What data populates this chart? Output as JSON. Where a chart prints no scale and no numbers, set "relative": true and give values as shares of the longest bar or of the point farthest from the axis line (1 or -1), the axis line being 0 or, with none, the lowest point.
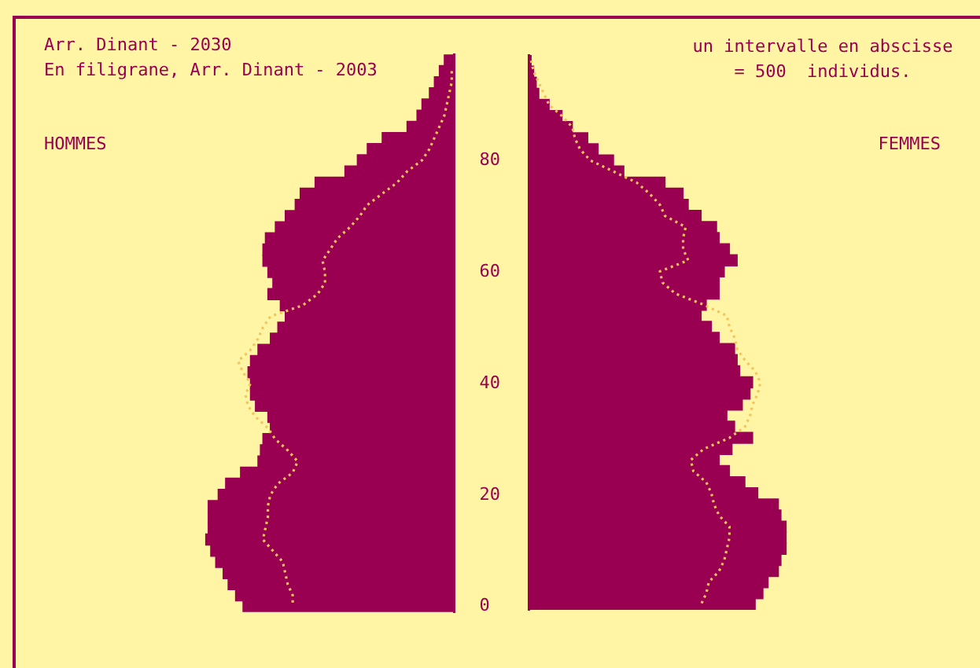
{
  "chart_data": [
    {
      "type": "bar",
      "orientation": "horizontal",
      "relative": true,
      "title": "Arr. Dinant - 2030",
      "annotations": [
        "En filigrane, Arr. Dinant - 2003"
      ],
      "categories": [
        null,
        null,
        null,
        null,
        null,
        null,
        null,
        null,
        null,
        "80",
        null,
        null,
        null,
        null,
        null,
        null,
        null,
        null,
        null,
        "60",
        null,
        null,
        null,
        null,
        null,
        null,
        null,
        null,
        null,
        "40",
        null,
        null,
        null,
        null,
        null,
        null,
        null,
        null,
        null,
        "20",
        null,
        null,
        null,
        null,
        null,
        null,
        null,
        null,
        null,
        "0"
      ],
      "series": [
        {
          "name": "HOMMES",
          "color": "#990052",
          "values": [
            0.04,
            0.06,
            0.08,
            0.1,
            0.13,
            0.15,
            0.19,
            0.29,
            0.35,
            0.39,
            0.44,
            0.56,
            0.62,
            0.64,
            0.68,
            0.72,
            0.76,
            0.77,
            0.77,
            0.75,
            0.73,
            0.75,
            0.7,
            0.68,
            0.71,
            0.74,
            0.79,
            0.82,
            0.83,
            0.82,
            0.82,
            0.8,
            0.75,
            0.74,
            0.77,
            0.78,
            0.79,
            0.86,
            0.92,
            0.95,
            0.99,
            0.99,
            0.99,
            1.0,
            0.98,
            0.96,
            0.93,
            0.91,
            0.88,
            0.85
          ]
        },
        {
          "type": "line",
          "color": "#f2c55c",
          "values": [
            null,
            0.01,
            0.01,
            0.02,
            0.03,
            0.04,
            0.06,
            0.08,
            0.1,
            0.13,
            0.19,
            0.23,
            0.29,
            0.35,
            0.38,
            0.42,
            0.47,
            0.5,
            0.53,
            0.52,
            0.52,
            0.55,
            0.61,
            0.74,
            0.77,
            0.79,
            0.82,
            0.87,
            0.85,
            0.82,
            0.84,
            0.83,
            0.8,
            0.75,
            0.72,
            0.67,
            0.63,
            0.65,
            0.71,
            0.74,
            0.75,
            0.75,
            0.76,
            0.77,
            0.73,
            0.69,
            0.68,
            0.67,
            0.65,
            0.65
          ]
        }
      ],
      "line_style": "dotted",
      "marker": "none",
      "tick_labels": "y"
    },
    {
      "type": "bar",
      "orientation": "horizontal",
      "relative": true,
      "annotations": [
        "un intervalle en abscisse = 500  individus."
      ],
      "categories": [
        null,
        null,
        null,
        null,
        null,
        null,
        null,
        null,
        null,
        "80",
        null,
        null,
        null,
        null,
        null,
        null,
        null,
        null,
        null,
        "60",
        null,
        null,
        null,
        null,
        null,
        null,
        null,
        null,
        null,
        "40",
        null,
        null,
        null,
        null,
        null,
        null,
        null,
        null,
        null,
        "20",
        null,
        null,
        null,
        null,
        null,
        null,
        null,
        null,
        null,
        "0"
      ],
      "series": [
        {
          "name": "FEMMES",
          "color": "#990052",
          "values": [
            0.01,
            0.02,
            0.03,
            0.04,
            0.08,
            0.13,
            0.17,
            0.23,
            0.27,
            0.33,
            0.37,
            0.53,
            0.6,
            0.62,
            0.67,
            0.73,
            0.74,
            0.78,
            0.81,
            0.76,
            0.74,
            0.74,
            0.69,
            0.67,
            0.71,
            0.74,
            0.8,
            0.81,
            0.82,
            0.87,
            0.86,
            0.83,
            0.77,
            0.8,
            0.87,
            0.79,
            0.74,
            0.78,
            0.84,
            0.89,
            0.97,
            0.98,
            1.0,
            1.0,
            1.0,
            0.98,
            0.97,
            0.93,
            0.91,
            0.88
          ]
        },
        {
          "type": "line",
          "color": "#f2c55c",
          "values": [
            0.01,
            0.02,
            0.04,
            0.06,
            0.08,
            0.13,
            0.17,
            0.18,
            0.2,
            0.24,
            0.33,
            0.42,
            0.47,
            0.51,
            0.53,
            0.61,
            0.6,
            0.6,
            0.62,
            0.51,
            0.52,
            0.57,
            0.68,
            0.77,
            0.78,
            0.8,
            0.81,
            0.84,
            0.88,
            0.9,
            0.89,
            0.87,
            0.86,
            0.84,
            0.78,
            0.68,
            0.63,
            0.64,
            0.69,
            0.71,
            0.72,
            0.74,
            0.78,
            0.78,
            0.77,
            0.76,
            0.74,
            0.7,
            0.69,
            0.67
          ]
        }
      ],
      "line_style": "dotted",
      "marker": "none",
      "tick_labels": false
    }
  ]
}
